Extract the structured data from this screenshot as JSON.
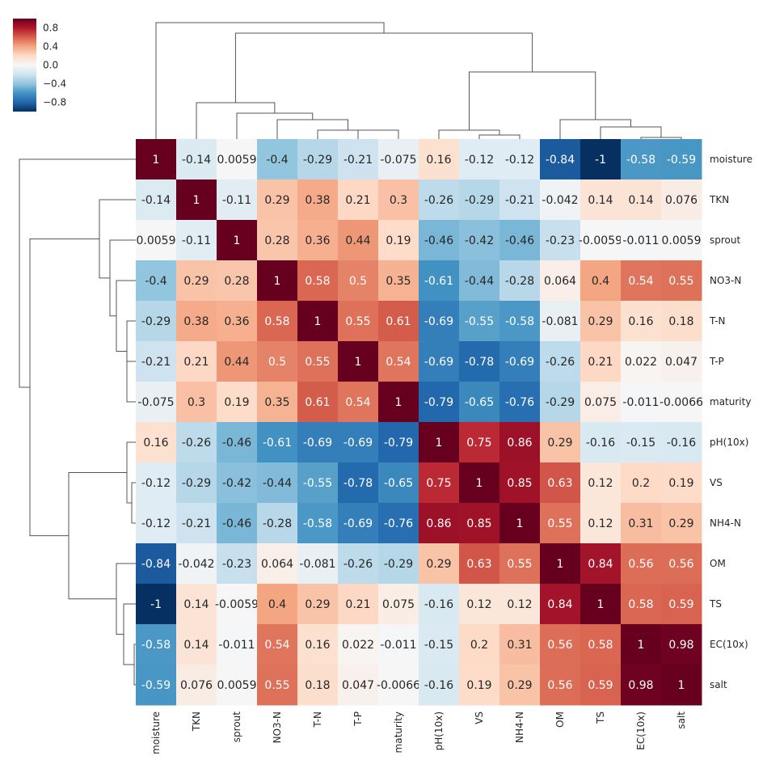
{
  "chart_data": {
    "type": "heatmap",
    "subtype": "clustermap",
    "title": "",
    "colormap": "RdBu_r",
    "vmin": -1,
    "vmax": 1,
    "colormap_stops": [
      "#053061",
      "#2166ac",
      "#4393c3",
      "#92c5de",
      "#d1e5f0",
      "#f7f7f7",
      "#fddbc7",
      "#f4a582",
      "#d6604d",
      "#b2182b",
      "#67001f"
    ],
    "colorbar": {
      "ticks": [
        0.8,
        0.4,
        0.0,
        -0.4,
        -0.8
      ],
      "tick_labels": [
        "0.8",
        "0.4",
        "0.0",
        "−0.4",
        "−0.8"
      ],
      "placement": "top-left"
    },
    "row_labels": [
      "moisture",
      "TKN",
      "sprout",
      "NO3-N",
      "T-N",
      "T-P",
      "maturity",
      "pH(10x)",
      "VS",
      "NH4-N",
      "OM",
      "TS",
      "EC(10x)",
      "salt"
    ],
    "col_labels": [
      "moisture",
      "TKN",
      "sprout",
      "NO3-N",
      "T-N",
      "T-P",
      "maturity",
      "pH(10x)",
      "VS",
      "NH4-N",
      "OM",
      "TS",
      "EC(10x)",
      "salt"
    ],
    "dendrograms": {
      "top": true,
      "left": true
    },
    "values": [
      [
        1,
        -0.14,
        0.0059,
        -0.4,
        -0.29,
        -0.21,
        -0.075,
        0.16,
        -0.12,
        -0.12,
        -0.84,
        -1,
        -0.58,
        -0.59
      ],
      [
        -0.14,
        1,
        -0.11,
        0.29,
        0.38,
        0.21,
        0.3,
        -0.26,
        -0.29,
        -0.21,
        -0.042,
        0.14,
        0.14,
        0.076
      ],
      [
        0.0059,
        -0.11,
        1,
        0.28,
        0.36,
        0.44,
        0.19,
        -0.46,
        -0.42,
        -0.46,
        -0.23,
        -0.0059,
        -0.011,
        0.0059
      ],
      [
        -0.4,
        0.29,
        0.28,
        1,
        0.58,
        0.5,
        0.35,
        -0.61,
        -0.44,
        -0.28,
        0.064,
        0.4,
        0.54,
        0.55
      ],
      [
        -0.29,
        0.38,
        0.36,
        0.58,
        1,
        0.55,
        0.61,
        -0.69,
        -0.55,
        -0.58,
        -0.081,
        0.29,
        0.16,
        0.18
      ],
      [
        -0.21,
        0.21,
        0.44,
        0.5,
        0.55,
        1,
        0.54,
        -0.69,
        -0.78,
        -0.69,
        -0.26,
        0.21,
        0.022,
        0.047
      ],
      [
        -0.075,
        0.3,
        0.19,
        0.35,
        0.61,
        0.54,
        1,
        -0.79,
        -0.65,
        -0.76,
        -0.29,
        0.075,
        -0.011,
        -0.0066
      ],
      [
        0.16,
        -0.26,
        -0.46,
        -0.61,
        -0.69,
        -0.69,
        -0.79,
        1,
        0.75,
        0.86,
        0.29,
        -0.16,
        -0.15,
        -0.16
      ],
      [
        -0.12,
        -0.29,
        -0.42,
        -0.44,
        -0.55,
        -0.78,
        -0.65,
        0.75,
        1,
        0.85,
        0.63,
        0.12,
        0.2,
        0.19
      ],
      [
        -0.12,
        -0.21,
        -0.46,
        -0.28,
        -0.58,
        -0.69,
        -0.76,
        0.86,
        0.85,
        1,
        0.55,
        0.12,
        0.31,
        0.29
      ],
      [
        -0.84,
        -0.042,
        -0.23,
        0.064,
        -0.081,
        -0.26,
        -0.29,
        0.29,
        0.63,
        0.55,
        1,
        0.84,
        0.56,
        0.56
      ],
      [
        -1,
        0.14,
        -0.0059,
        0.4,
        0.29,
        0.21,
        0.075,
        -0.16,
        0.12,
        0.12,
        0.84,
        1,
        0.58,
        0.59
      ],
      [
        -0.58,
        0.14,
        -0.011,
        0.54,
        0.16,
        0.022,
        -0.011,
        -0.15,
        0.2,
        0.31,
        0.56,
        0.58,
        1,
        0.98
      ],
      [
        -0.59,
        0.076,
        0.0059,
        0.55,
        0.18,
        0.047,
        -0.0066,
        -0.16,
        0.19,
        0.29,
        0.56,
        0.59,
        0.98,
        1
      ]
    ]
  }
}
